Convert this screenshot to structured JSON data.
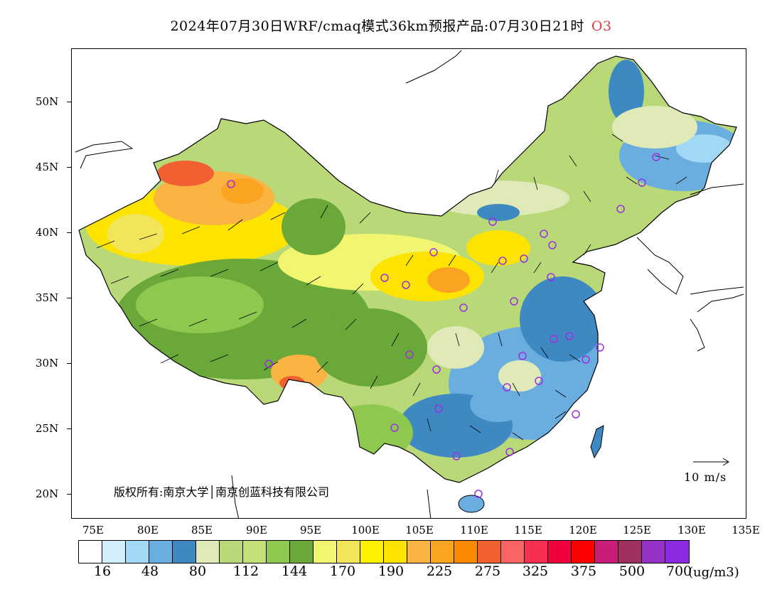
{
  "header": {
    "title": "2024年07月30日WRF/cmaq模式36km预报产品:07月30日21时",
    "pollutant": "O3",
    "pollutant_color": "#e03c3c"
  },
  "map": {
    "lat_labels": [
      "50N",
      "45N",
      "40N",
      "35N",
      "30N",
      "25N",
      "20N"
    ],
    "lon_labels": [
      "75E",
      "80E",
      "85E",
      "90E",
      "95E",
      "100E",
      "105E",
      "110E",
      "115E",
      "120E",
      "125E",
      "130E",
      "135E"
    ],
    "copyright": "版权所有:南京大学│南京创蓝科技有限公司",
    "wind_scale_label": "10 m/s",
    "station_marker_color": "#9b30e0"
  },
  "colorbar": {
    "colors": [
      "#ffffff",
      "#d3eefa",
      "#a0d8f5",
      "#6aaee0",
      "#3f89c3",
      "#dfeab8",
      "#b9d878",
      "#c3e07a",
      "#8ec84e",
      "#6aa83a",
      "#f1f570",
      "#f3e55a",
      "#fff200",
      "#fde300",
      "#f9b442",
      "#fba422",
      "#fb8a00",
      "#f06030",
      "#fb6464",
      "#f83050",
      "#f0003c",
      "#ff0000",
      "#c81e7a",
      "#a03060",
      "#9632c8",
      "#8a2be2"
    ],
    "labels": [
      "16",
      "48",
      "80",
      "112",
      "144",
      "170",
      "190",
      "225",
      "275",
      "325",
      "375",
      "500",
      "700"
    ],
    "unit": "(ug/m3)"
  }
}
